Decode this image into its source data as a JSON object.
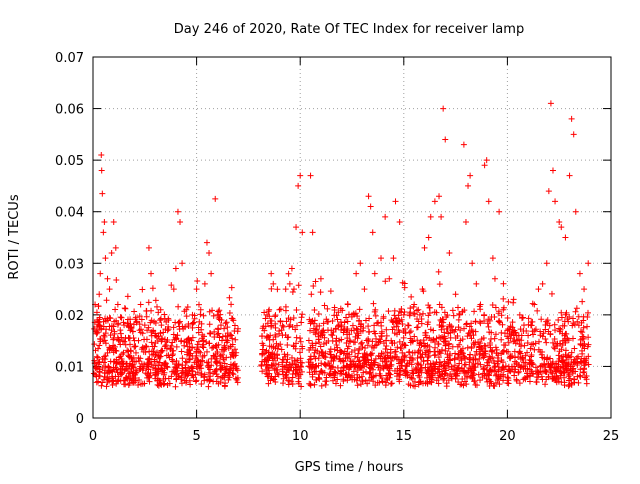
{
  "chart_data": {
    "type": "scatter",
    "title": "Day 246 of 2020, Rate Of TEC Index for receiver lamp",
    "xlabel": "GPS time / hours",
    "ylabel": "ROTI / TECUs",
    "xlim": [
      0,
      25
    ],
    "ylim": [
      0,
      0.07
    ],
    "x_ticks": [
      0,
      5,
      10,
      15,
      20,
      25
    ],
    "x_tick_labels": [
      "0",
      "5",
      "10",
      "15",
      "20",
      "25"
    ],
    "y_ticks": [
      0,
      0.01,
      0.02,
      0.03,
      0.04,
      0.05,
      0.06,
      0.07
    ],
    "y_tick_labels": [
      "0",
      "0.01",
      "0.02",
      "0.03",
      "0.04",
      "0.05",
      "0.06",
      "0.07"
    ],
    "grid": true,
    "marker": "+",
    "color": "#ff0000",
    "data_gaps_hours": [
      [
        7.0,
        8.1
      ],
      [
        10.1,
        10.4
      ]
    ],
    "series": [
      {
        "values": [
          [
            0.1,
            0.022
          ],
          [
            0.2,
            0.019
          ],
          [
            0.3,
            0.024
          ],
          [
            0.35,
            0.028
          ],
          [
            0.4,
            0.051
          ],
          [
            0.42,
            0.048
          ],
          [
            0.45,
            0.0435
          ],
          [
            0.5,
            0.036
          ],
          [
            0.55,
            0.038
          ],
          [
            0.6,
            0.031
          ],
          [
            0.7,
            0.027
          ],
          [
            0.8,
            0.025
          ],
          [
            0.9,
            0.032
          ],
          [
            1.0,
            0.038
          ],
          [
            1.1,
            0.033
          ],
          [
            1.2,
            0.022
          ],
          [
            1.5,
            0.018
          ],
          [
            1.8,
            0.017
          ],
          [
            2.0,
            0.015
          ],
          [
            2.3,
            0.022
          ],
          [
            2.5,
            0.018
          ],
          [
            2.7,
            0.033
          ],
          [
            2.8,
            0.028
          ],
          [
            2.9,
            0.017
          ],
          [
            3.0,
            0.016
          ],
          [
            3.3,
            0.018
          ],
          [
            3.6,
            0.017
          ],
          [
            3.9,
            0.025
          ],
          [
            4.0,
            0.029
          ],
          [
            4.1,
            0.04
          ],
          [
            4.2,
            0.038
          ],
          [
            4.3,
            0.03
          ],
          [
            4.5,
            0.021
          ],
          [
            4.8,
            0.02
          ],
          [
            5.0,
            0.025
          ],
          [
            5.2,
            0.021
          ],
          [
            5.4,
            0.026
          ],
          [
            5.5,
            0.034
          ],
          [
            5.6,
            0.032
          ],
          [
            5.7,
            0.028
          ],
          [
            5.9,
            0.0425
          ],
          [
            6.0,
            0.02
          ],
          [
            6.2,
            0.019
          ],
          [
            6.5,
            0.015
          ],
          [
            6.8,
            0.012
          ],
          [
            8.4,
            0.02
          ],
          [
            8.5,
            0.021
          ],
          [
            8.6,
            0.028
          ],
          [
            8.7,
            0.026
          ],
          [
            9.0,
            0.021
          ],
          [
            9.3,
            0.025
          ],
          [
            9.5,
            0.026
          ],
          [
            9.6,
            0.029
          ],
          [
            9.7,
            0.025
          ],
          [
            9.8,
            0.037
          ],
          [
            9.9,
            0.045
          ],
          [
            10.0,
            0.047
          ],
          [
            10.1,
            0.036
          ],
          [
            10.5,
            0.047
          ],
          [
            10.6,
            0.036
          ],
          [
            11.0,
            0.027
          ],
          [
            11.5,
            0.017
          ],
          [
            12.0,
            0.018
          ],
          [
            12.3,
            0.022
          ],
          [
            12.5,
            0.02
          ],
          [
            12.7,
            0.028
          ],
          [
            12.9,
            0.03
          ],
          [
            13.1,
            0.025
          ],
          [
            13.3,
            0.043
          ],
          [
            13.4,
            0.041
          ],
          [
            13.5,
            0.036
          ],
          [
            13.6,
            0.028
          ],
          [
            13.9,
            0.031
          ],
          [
            14.1,
            0.039
          ],
          [
            14.3,
            0.027
          ],
          [
            14.5,
            0.031
          ],
          [
            14.6,
            0.042
          ],
          [
            14.8,
            0.038
          ],
          [
            15.0,
            0.02
          ],
          [
            15.2,
            0.018
          ],
          [
            15.5,
            0.022
          ],
          [
            15.7,
            0.021
          ],
          [
            15.9,
            0.025
          ],
          [
            16.0,
            0.033
          ],
          [
            16.2,
            0.035
          ],
          [
            16.3,
            0.039
          ],
          [
            16.5,
            0.042
          ],
          [
            16.7,
            0.043
          ],
          [
            16.8,
            0.039
          ],
          [
            16.9,
            0.06
          ],
          [
            17.0,
            0.054
          ],
          [
            17.2,
            0.032
          ],
          [
            17.5,
            0.024
          ],
          [
            17.7,
            0.02
          ],
          [
            17.9,
            0.053
          ],
          [
            18.0,
            0.038
          ],
          [
            18.1,
            0.045
          ],
          [
            18.2,
            0.047
          ],
          [
            18.3,
            0.03
          ],
          [
            18.5,
            0.026
          ],
          [
            18.7,
            0.022
          ],
          [
            18.9,
            0.049
          ],
          [
            19.0,
            0.05
          ],
          [
            19.1,
            0.042
          ],
          [
            19.3,
            0.031
          ],
          [
            19.4,
            0.027
          ],
          [
            19.6,
            0.04
          ],
          [
            19.8,
            0.021
          ],
          [
            20.0,
            0.017
          ],
          [
            20.3,
            0.023
          ],
          [
            20.6,
            0.02
          ],
          [
            20.8,
            0.018
          ],
          [
            21.0,
            0.016
          ],
          [
            21.3,
            0.022
          ],
          [
            21.5,
            0.025
          ],
          [
            21.7,
            0.026
          ],
          [
            21.9,
            0.03
          ],
          [
            22.0,
            0.044
          ],
          [
            22.1,
            0.061
          ],
          [
            22.2,
            0.048
          ],
          [
            22.3,
            0.042
          ],
          [
            22.5,
            0.038
          ],
          [
            22.6,
            0.037
          ],
          [
            22.8,
            0.035
          ],
          [
            23.0,
            0.047
          ],
          [
            23.1,
            0.058
          ],
          [
            23.2,
            0.055
          ],
          [
            23.3,
            0.04
          ],
          [
            23.5,
            0.028
          ],
          [
            23.7,
            0.025
          ],
          [
            23.9,
            0.03
          ]
        ]
      }
    ],
    "dense_baseline_range": [
      0.002,
      0.016
    ]
  }
}
